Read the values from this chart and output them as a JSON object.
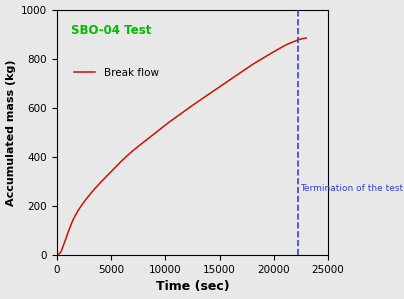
{
  "title": "SBO-04 Test",
  "title_color": "#00bb00",
  "xlabel": "Time (sec)",
  "ylabel": "Accumulated mass (kg)",
  "xlim": [
    0,
    25000
  ],
  "ylim": [
    0,
    1000
  ],
  "xticks": [
    0,
    5000,
    10000,
    15000,
    20000,
    25000
  ],
  "yticks": [
    0,
    200,
    400,
    600,
    800,
    1000
  ],
  "line_color": "#cc1100",
  "dashed_line_x": 22200,
  "dashed_line_color": "#3344cc",
  "annotation_text": "Termination of the test",
  "annotation_color": "#3344cc",
  "legend_label": "Break flow",
  "background_color": "#e8e8e8",
  "curve_points_t": [
    0,
    300,
    600,
    1000,
    1500,
    2000,
    3000,
    4000,
    5000,
    6000,
    7000,
    8000,
    9000,
    10000,
    11000,
    12000,
    13000,
    14000,
    15000,
    16000,
    17000,
    18000,
    19000,
    20000,
    21000,
    22000,
    22500,
    23000
  ],
  "curve_points_y": [
    0,
    10,
    40,
    90,
    145,
    185,
    245,
    295,
    340,
    385,
    425,
    460,
    495,
    530,
    562,
    594,
    625,
    655,
    685,
    715,
    745,
    775,
    802,
    828,
    853,
    872,
    880,
    884
  ]
}
